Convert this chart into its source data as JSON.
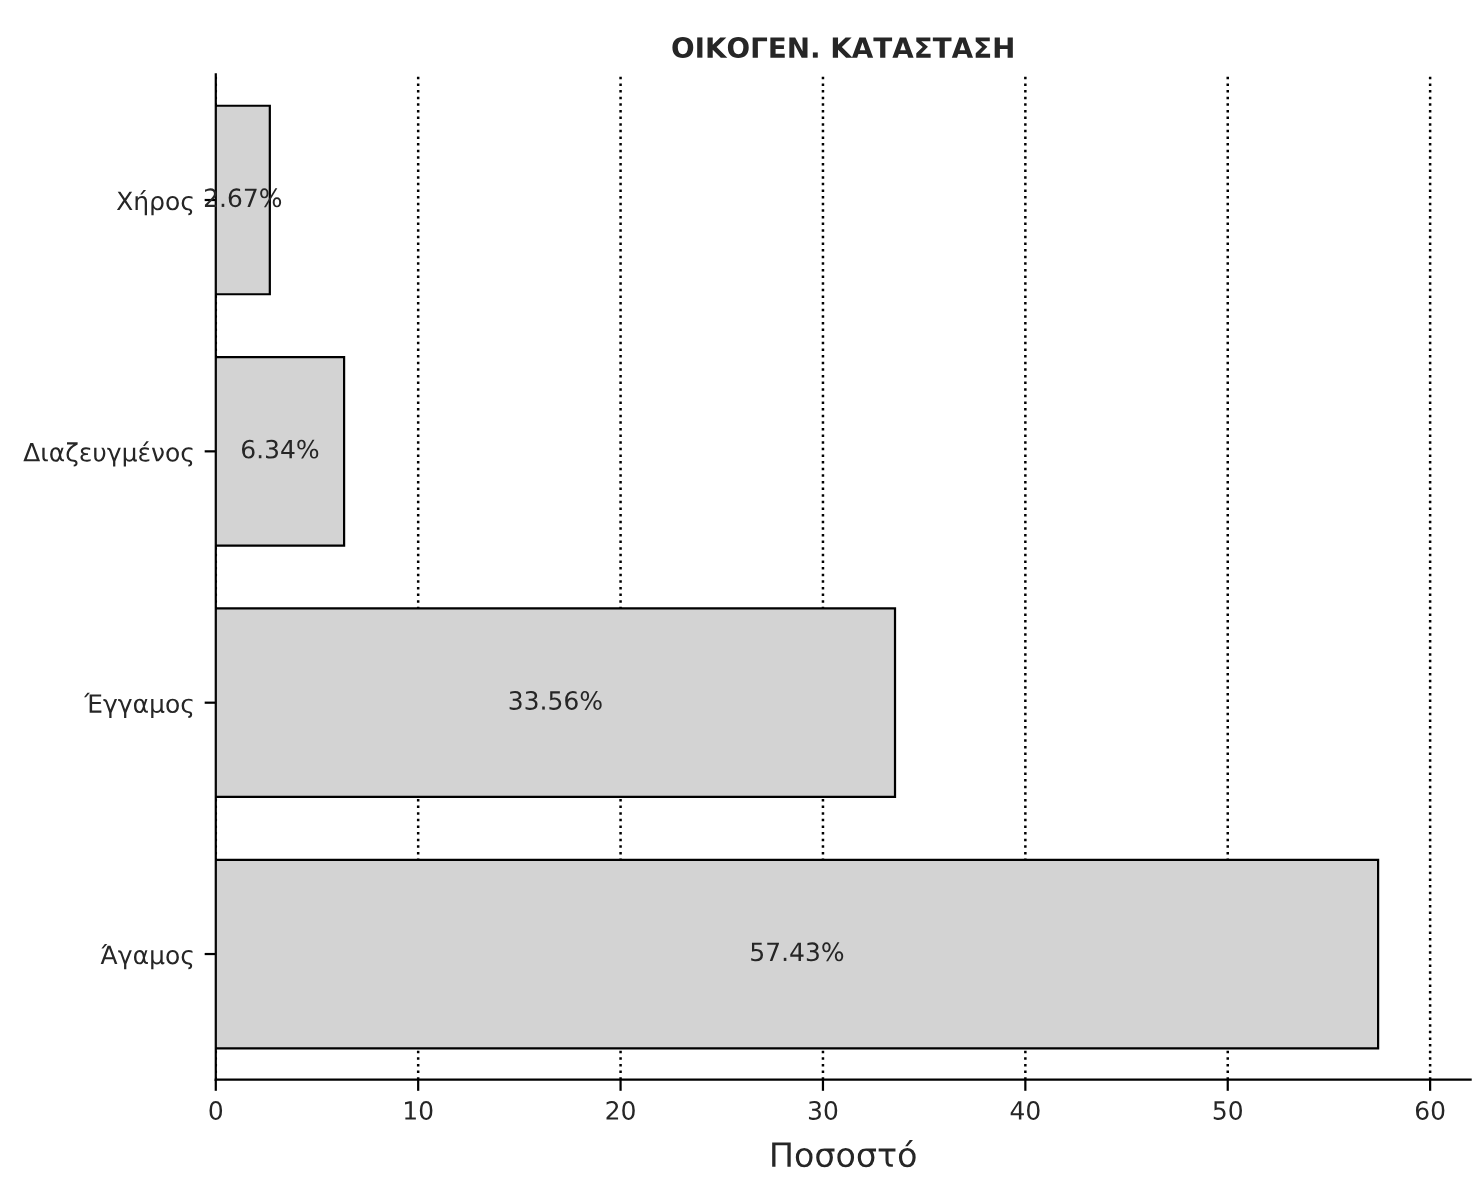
{
  "chart_data": {
    "type": "bar",
    "orientation": "horizontal",
    "title": "ΟΙΚΟΓΕΝ. ΚΑΤΑΣΤΑΣΗ",
    "xlabel": "Ποσοστό",
    "categories": [
      "Χήρος",
      "Διαζευγμένος",
      "Έγγαμος",
      "Άγαμος"
    ],
    "values": [
      2.67,
      6.34,
      33.56,
      57.43
    ],
    "value_labels": [
      "2.67%",
      "6.34%",
      "33.56%",
      "57.43%"
    ],
    "color": "#d3d3d3",
    "xlim": [
      0,
      62
    ],
    "xticks": [
      0,
      10,
      20,
      30,
      40,
      50,
      60
    ],
    "grid": "x",
    "line_style": "dotted",
    "legend": false
  }
}
